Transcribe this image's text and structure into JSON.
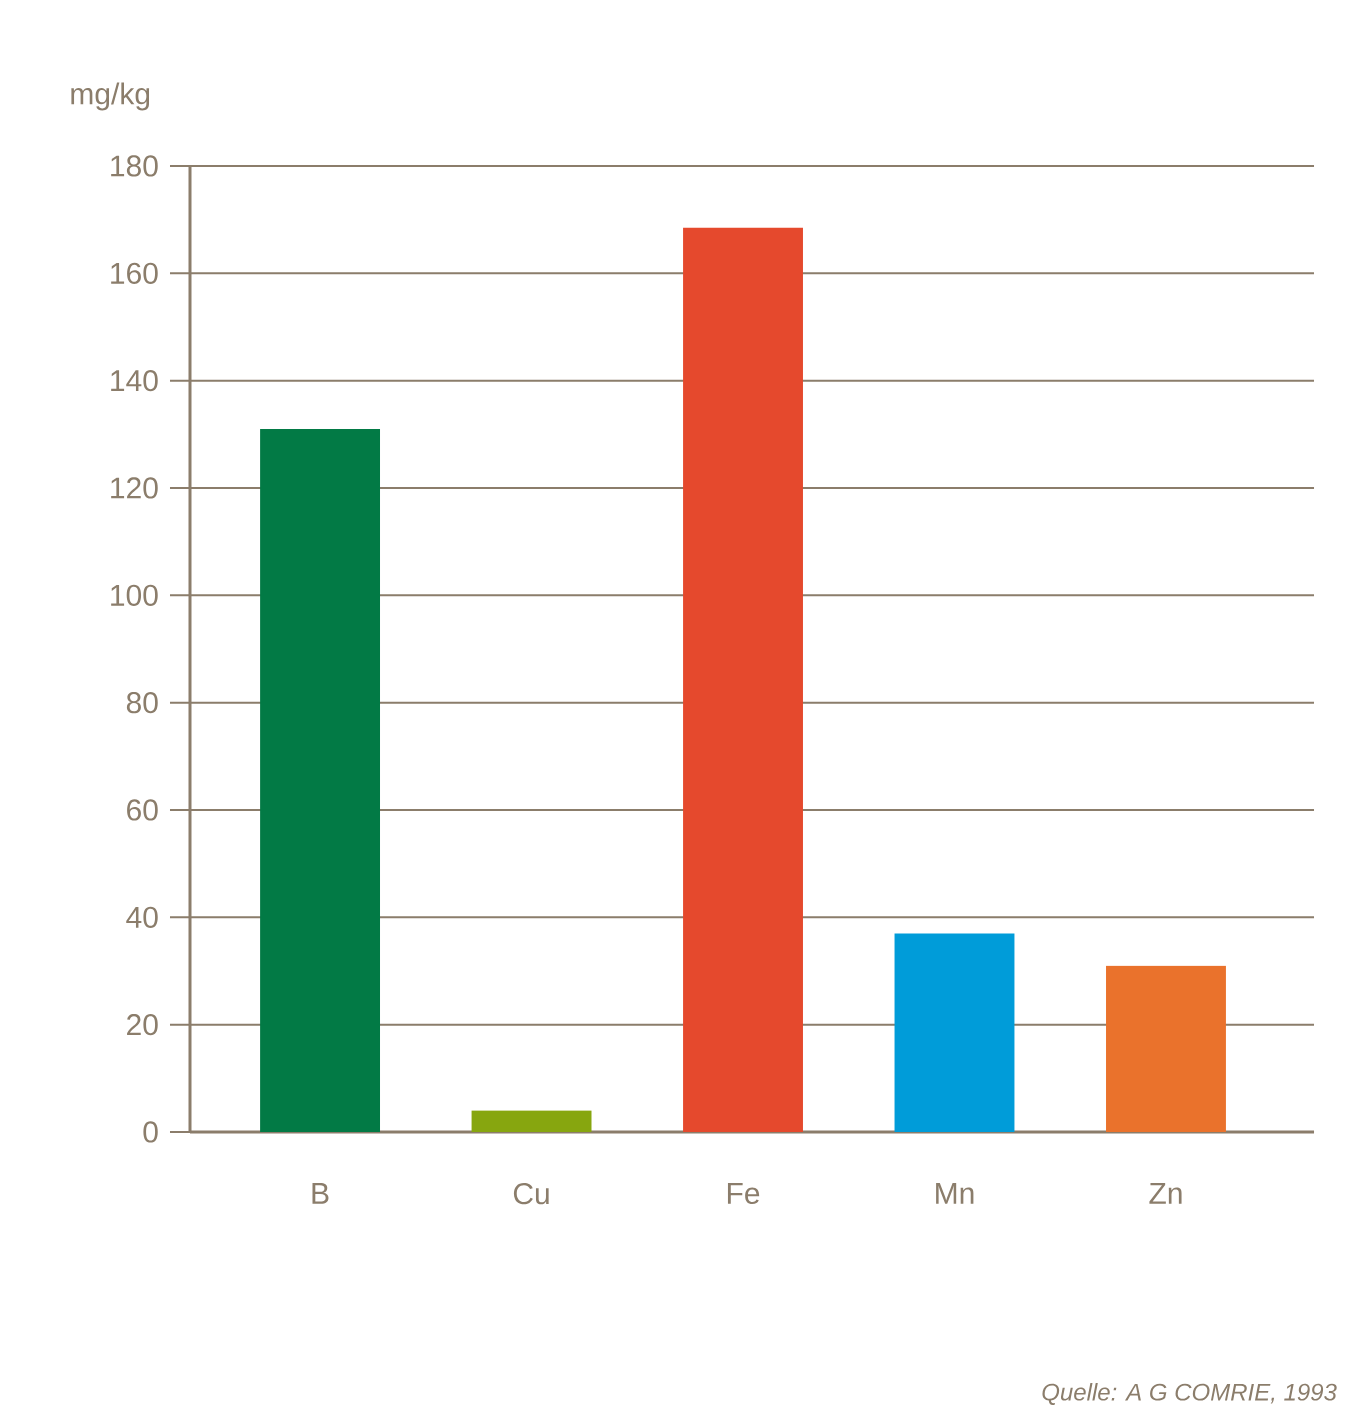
{
  "chart_data": {
    "type": "bar",
    "ylabel": "mg/kg",
    "categories": [
      "B",
      "Cu",
      "Fe",
      "Mn",
      "Zn"
    ],
    "values": [
      131,
      4,
      168.5,
      37,
      31
    ],
    "colors": [
      "#027a45",
      "#87a60f",
      "#e5492d",
      "#009cd9",
      "#ea722c"
    ],
    "ylim": [
      0,
      180
    ],
    "yticks": [
      0,
      20,
      40,
      60,
      80,
      100,
      120,
      140,
      160,
      180
    ],
    "grid": "y",
    "annotations": [
      "Quelle: A G COMRIE, 1993"
    ]
  }
}
